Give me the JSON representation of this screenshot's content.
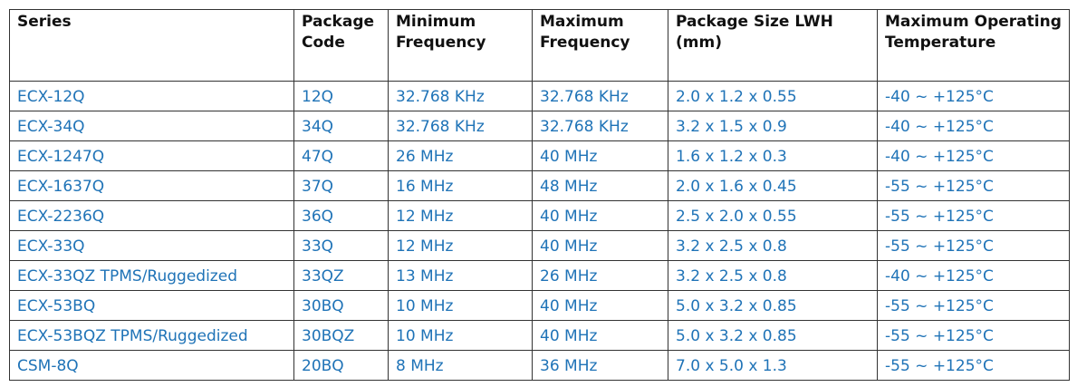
{
  "table": {
    "header": [
      "Series",
      "Package Code",
      "Minimum Frequency",
      "Maximum Frequency",
      "Package Size LWH (mm)",
      "Maximum Operating Temperature"
    ],
    "rows": [
      [
        "ECX-12Q",
        "12Q",
        "32.768 KHz",
        "32.768 KHz",
        "2.0 x 1.2 x 0.55",
        "-40 ~ +125°C"
      ],
      [
        "ECX-34Q",
        "34Q",
        "32.768 KHz",
        "32.768 KHz",
        "3.2 x 1.5 x 0.9",
        "-40 ~ +125°C"
      ],
      [
        "ECX-1247Q",
        "47Q",
        "26 MHz",
        "40 MHz",
        "1.6 x 1.2 x 0.3",
        "-40 ~ +125°C"
      ],
      [
        "ECX-1637Q",
        "37Q",
        "16 MHz",
        "48 MHz",
        "2.0 x 1.6 x 0.45",
        "-55 ~ +125°C"
      ],
      [
        "ECX-2236Q",
        "36Q",
        "12 MHz",
        "40 MHz",
        "2.5 x 2.0 x 0.55",
        "-55 ~ +125°C"
      ],
      [
        "ECX-33Q",
        "33Q",
        "12 MHz",
        "40 MHz",
        "3.2 x 2.5 x 0.8",
        "-55 ~ +125°C"
      ],
      [
        "ECX-33QZ TPMS/Ruggedized",
        "33QZ",
        "13 MHz",
        "26 MHz",
        "3.2 x 2.5 x 0.8",
        "-40 ~ +125°C"
      ],
      [
        "ECX-53BQ",
        "30BQ",
        "10 MHz",
        "40 MHz",
        "5.0 x 3.2 x 0.85",
        "-55 ~ +125°C"
      ],
      [
        "ECX-53BQZ TPMS/Ruggedized",
        "30BQZ",
        "10 MHz",
        "40 MHz",
        "5.0 x 3.2 x 0.85",
        "-55 ~ +125°C"
      ],
      [
        "CSM-8Q",
        "20BQ",
        "8 MHz",
        "36 MHz",
        "7.0 x 5.0 x 1.3",
        "-55 ~ +125°C"
      ]
    ]
  }
}
